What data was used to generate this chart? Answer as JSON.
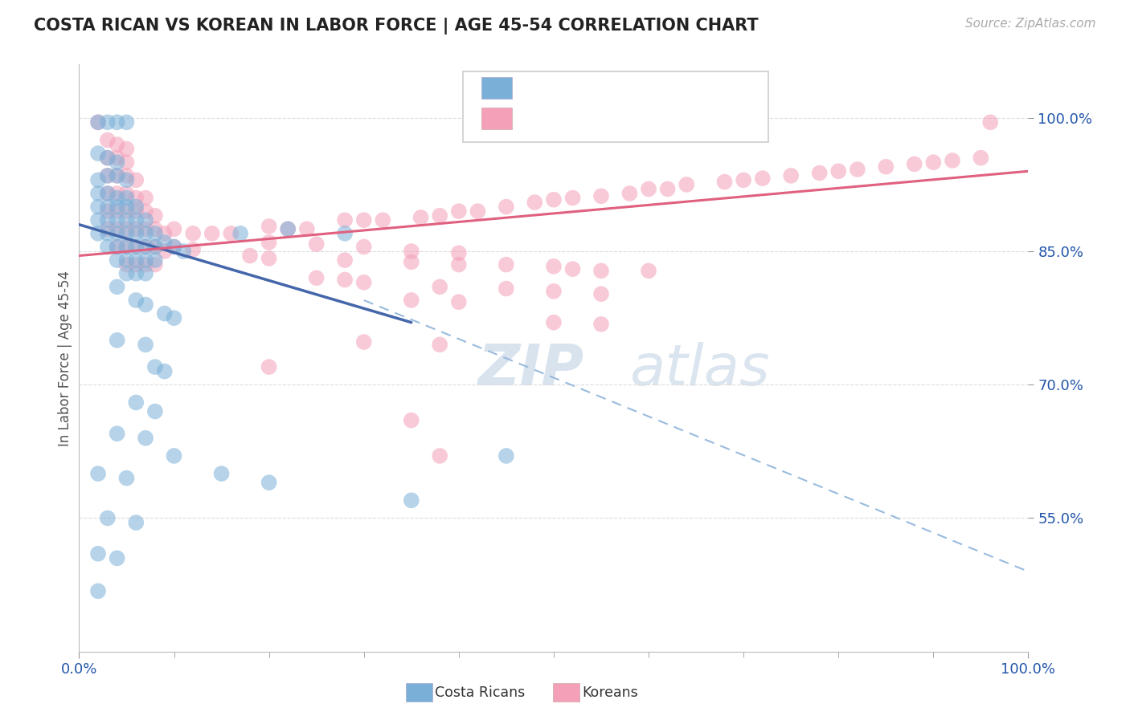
{
  "title": "COSTA RICAN VS KOREAN IN LABOR FORCE | AGE 45-54 CORRELATION CHART",
  "source_text": "Source: ZipAtlas.com",
  "ylabel": "In Labor Force | Age 45-54",
  "xlim": [
    0.0,
    1.0
  ],
  "ylim": [
    0.4,
    1.06
  ],
  "x_tick_labels": [
    "0.0%",
    "100.0%"
  ],
  "y_tick_labels": [
    "55.0%",
    "70.0%",
    "85.0%",
    "100.0%"
  ],
  "y_tick_positions": [
    0.55,
    0.7,
    0.85,
    1.0
  ],
  "cr_color": "#7ab0d8",
  "kr_color": "#f4a0b8",
  "blue_line_color": "#4466aa",
  "pink_line_color": "#e06080",
  "dashed_line_color": "#99bbdd",
  "label_color": "#2255aa",
  "cr_scatter": [
    [
      0.02,
      0.995
    ],
    [
      0.03,
      0.995
    ],
    [
      0.04,
      0.995
    ],
    [
      0.05,
      0.995
    ],
    [
      0.02,
      0.96
    ],
    [
      0.03,
      0.955
    ],
    [
      0.04,
      0.95
    ],
    [
      0.02,
      0.93
    ],
    [
      0.03,
      0.935
    ],
    [
      0.04,
      0.935
    ],
    [
      0.05,
      0.93
    ],
    [
      0.02,
      0.915
    ],
    [
      0.03,
      0.915
    ],
    [
      0.04,
      0.91
    ],
    [
      0.05,
      0.91
    ],
    [
      0.02,
      0.9
    ],
    [
      0.03,
      0.9
    ],
    [
      0.04,
      0.9
    ],
    [
      0.05,
      0.9
    ],
    [
      0.06,
      0.9
    ],
    [
      0.02,
      0.885
    ],
    [
      0.03,
      0.885
    ],
    [
      0.04,
      0.885
    ],
    [
      0.05,
      0.885
    ],
    [
      0.06,
      0.885
    ],
    [
      0.07,
      0.885
    ],
    [
      0.02,
      0.87
    ],
    [
      0.03,
      0.87
    ],
    [
      0.04,
      0.87
    ],
    [
      0.05,
      0.87
    ],
    [
      0.06,
      0.87
    ],
    [
      0.07,
      0.87
    ],
    [
      0.08,
      0.87
    ],
    [
      0.03,
      0.855
    ],
    [
      0.04,
      0.855
    ],
    [
      0.05,
      0.855
    ],
    [
      0.06,
      0.855
    ],
    [
      0.07,
      0.855
    ],
    [
      0.08,
      0.855
    ],
    [
      0.04,
      0.84
    ],
    [
      0.05,
      0.84
    ],
    [
      0.06,
      0.84
    ],
    [
      0.07,
      0.84
    ],
    [
      0.08,
      0.84
    ],
    [
      0.05,
      0.825
    ],
    [
      0.06,
      0.825
    ],
    [
      0.07,
      0.825
    ],
    [
      0.09,
      0.86
    ],
    [
      0.1,
      0.855
    ],
    [
      0.11,
      0.85
    ],
    [
      0.17,
      0.87
    ],
    [
      0.22,
      0.875
    ],
    [
      0.28,
      0.87
    ],
    [
      0.04,
      0.81
    ],
    [
      0.06,
      0.795
    ],
    [
      0.07,
      0.79
    ],
    [
      0.09,
      0.78
    ],
    [
      0.1,
      0.775
    ],
    [
      0.04,
      0.75
    ],
    [
      0.07,
      0.745
    ],
    [
      0.08,
      0.72
    ],
    [
      0.09,
      0.715
    ],
    [
      0.06,
      0.68
    ],
    [
      0.08,
      0.67
    ],
    [
      0.04,
      0.645
    ],
    [
      0.07,
      0.64
    ],
    [
      0.02,
      0.6
    ],
    [
      0.05,
      0.595
    ],
    [
      0.03,
      0.55
    ],
    [
      0.06,
      0.545
    ],
    [
      0.02,
      0.51
    ],
    [
      0.04,
      0.505
    ],
    [
      0.1,
      0.62
    ],
    [
      0.15,
      0.6
    ],
    [
      0.2,
      0.59
    ],
    [
      0.35,
      0.57
    ],
    [
      0.45,
      0.62
    ],
    [
      0.02,
      0.468
    ]
  ],
  "kr_scatter": [
    [
      0.02,
      0.995
    ],
    [
      0.96,
      0.995
    ],
    [
      0.03,
      0.975
    ],
    [
      0.04,
      0.97
    ],
    [
      0.05,
      0.965
    ],
    [
      0.03,
      0.955
    ],
    [
      0.04,
      0.955
    ],
    [
      0.05,
      0.95
    ],
    [
      0.03,
      0.935
    ],
    [
      0.04,
      0.935
    ],
    [
      0.05,
      0.935
    ],
    [
      0.06,
      0.93
    ],
    [
      0.03,
      0.915
    ],
    [
      0.04,
      0.915
    ],
    [
      0.05,
      0.915
    ],
    [
      0.06,
      0.91
    ],
    [
      0.07,
      0.91
    ],
    [
      0.03,
      0.895
    ],
    [
      0.04,
      0.895
    ],
    [
      0.05,
      0.895
    ],
    [
      0.06,
      0.895
    ],
    [
      0.07,
      0.895
    ],
    [
      0.08,
      0.89
    ],
    [
      0.03,
      0.875
    ],
    [
      0.04,
      0.875
    ],
    [
      0.05,
      0.875
    ],
    [
      0.06,
      0.875
    ],
    [
      0.07,
      0.875
    ],
    [
      0.08,
      0.875
    ],
    [
      0.09,
      0.87
    ],
    [
      0.04,
      0.855
    ],
    [
      0.05,
      0.855
    ],
    [
      0.06,
      0.855
    ],
    [
      0.07,
      0.855
    ],
    [
      0.08,
      0.855
    ],
    [
      0.09,
      0.85
    ],
    [
      0.05,
      0.835
    ],
    [
      0.06,
      0.835
    ],
    [
      0.07,
      0.835
    ],
    [
      0.08,
      0.835
    ],
    [
      0.1,
      0.875
    ],
    [
      0.12,
      0.87
    ],
    [
      0.14,
      0.87
    ],
    [
      0.16,
      0.87
    ],
    [
      0.2,
      0.878
    ],
    [
      0.22,
      0.875
    ],
    [
      0.24,
      0.875
    ],
    [
      0.28,
      0.885
    ],
    [
      0.3,
      0.885
    ],
    [
      0.32,
      0.885
    ],
    [
      0.36,
      0.888
    ],
    [
      0.38,
      0.89
    ],
    [
      0.4,
      0.895
    ],
    [
      0.42,
      0.895
    ],
    [
      0.45,
      0.9
    ],
    [
      0.48,
      0.905
    ],
    [
      0.5,
      0.908
    ],
    [
      0.52,
      0.91
    ],
    [
      0.55,
      0.912
    ],
    [
      0.58,
      0.915
    ],
    [
      0.6,
      0.92
    ],
    [
      0.62,
      0.92
    ],
    [
      0.64,
      0.925
    ],
    [
      0.68,
      0.928
    ],
    [
      0.7,
      0.93
    ],
    [
      0.72,
      0.932
    ],
    [
      0.75,
      0.935
    ],
    [
      0.78,
      0.938
    ],
    [
      0.8,
      0.94
    ],
    [
      0.82,
      0.942
    ],
    [
      0.85,
      0.945
    ],
    [
      0.88,
      0.948
    ],
    [
      0.9,
      0.95
    ],
    [
      0.92,
      0.952
    ],
    [
      0.95,
      0.955
    ],
    [
      0.2,
      0.86
    ],
    [
      0.25,
      0.858
    ],
    [
      0.3,
      0.855
    ],
    [
      0.35,
      0.85
    ],
    [
      0.4,
      0.848
    ],
    [
      0.28,
      0.84
    ],
    [
      0.35,
      0.838
    ],
    [
      0.4,
      0.835
    ],
    [
      0.45,
      0.835
    ],
    [
      0.5,
      0.833
    ],
    [
      0.52,
      0.83
    ],
    [
      0.55,
      0.828
    ],
    [
      0.6,
      0.828
    ],
    [
      0.18,
      0.845
    ],
    [
      0.2,
      0.842
    ],
    [
      0.1,
      0.855
    ],
    [
      0.12,
      0.852
    ],
    [
      0.3,
      0.815
    ],
    [
      0.38,
      0.81
    ],
    [
      0.45,
      0.808
    ],
    [
      0.5,
      0.805
    ],
    [
      0.55,
      0.802
    ],
    [
      0.35,
      0.795
    ],
    [
      0.4,
      0.793
    ],
    [
      0.25,
      0.82
    ],
    [
      0.28,
      0.818
    ],
    [
      0.5,
      0.77
    ],
    [
      0.55,
      0.768
    ],
    [
      0.3,
      0.748
    ],
    [
      0.38,
      0.745
    ],
    [
      0.2,
      0.72
    ],
    [
      0.35,
      0.66
    ],
    [
      0.38,
      0.62
    ]
  ],
  "blue_line_x0": 0.0,
  "blue_line_y0": 0.88,
  "blue_line_x1": 0.35,
  "blue_line_y1": 0.77,
  "dash_line_x0": 0.3,
  "dash_line_y0": 0.795,
  "dash_line_x1": 1.0,
  "dash_line_y1": 0.49,
  "pink_line_x0": 0.0,
  "pink_line_y0": 0.845,
  "pink_line_x1": 1.0,
  "pink_line_y1": 0.94
}
